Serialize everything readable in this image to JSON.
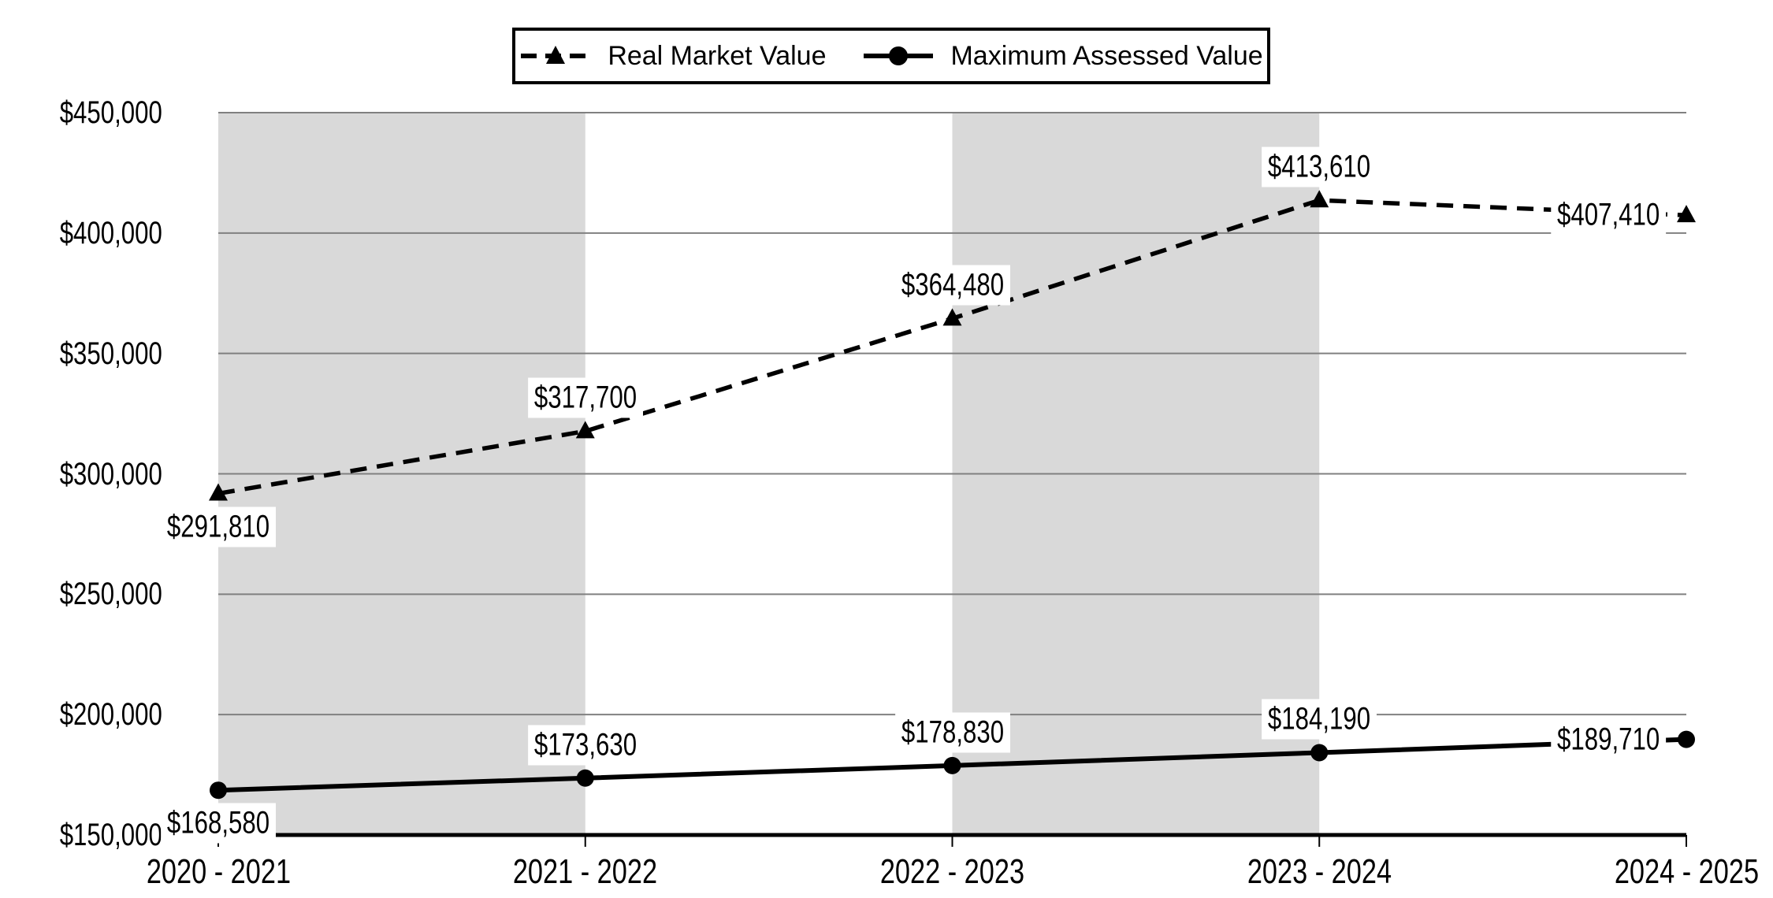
{
  "chart_data": {
    "type": "line",
    "title": "",
    "categories": [
      "2020 - 2021",
      "2021 - 2022",
      "2022 - 2023",
      "2023 - 2024",
      "2024 - 2025"
    ],
    "series": [
      {
        "name": "Real Market Value",
        "style": "dashed",
        "marker": "triangle",
        "values": [
          291810,
          317700,
          364480,
          413610,
          407410
        ],
        "labels": [
          "$291,810",
          "$317,700",
          "$364,480",
          "$413,610",
          "$407,410"
        ]
      },
      {
        "name": "Maximum Assessed Value",
        "style": "solid",
        "marker": "circle",
        "values": [
          168580,
          173630,
          178830,
          184190,
          189710
        ],
        "labels": [
          "$168,580",
          "$173,630",
          "$178,830",
          "$184,190",
          "$189,710"
        ]
      }
    ],
    "y_axis": {
      "min": 150000,
      "max": 450000,
      "tick_step": 50000,
      "tick_labels": [
        "$450,000",
        "$400,000",
        "$350,000",
        "$300,000",
        "$250,000",
        "$200,000",
        "$150,000"
      ]
    },
    "x_axis": {
      "tick_labels": [
        "2020 - 2021",
        "2021 - 2022",
        "2022 - 2023",
        "2023 - 2024",
        "2024 - 2025"
      ]
    },
    "legend_position": "top-center",
    "grid": true,
    "shaded_column_pairs": [
      [
        0,
        1
      ],
      [
        2,
        3
      ]
    ],
    "colors": {
      "line": "#000000",
      "band": "#d9d9d9",
      "gridline": "#808080",
      "axis": "#000000",
      "background": "#ffffff",
      "label_bg": "#ffffff",
      "text": "#000000"
    }
  }
}
